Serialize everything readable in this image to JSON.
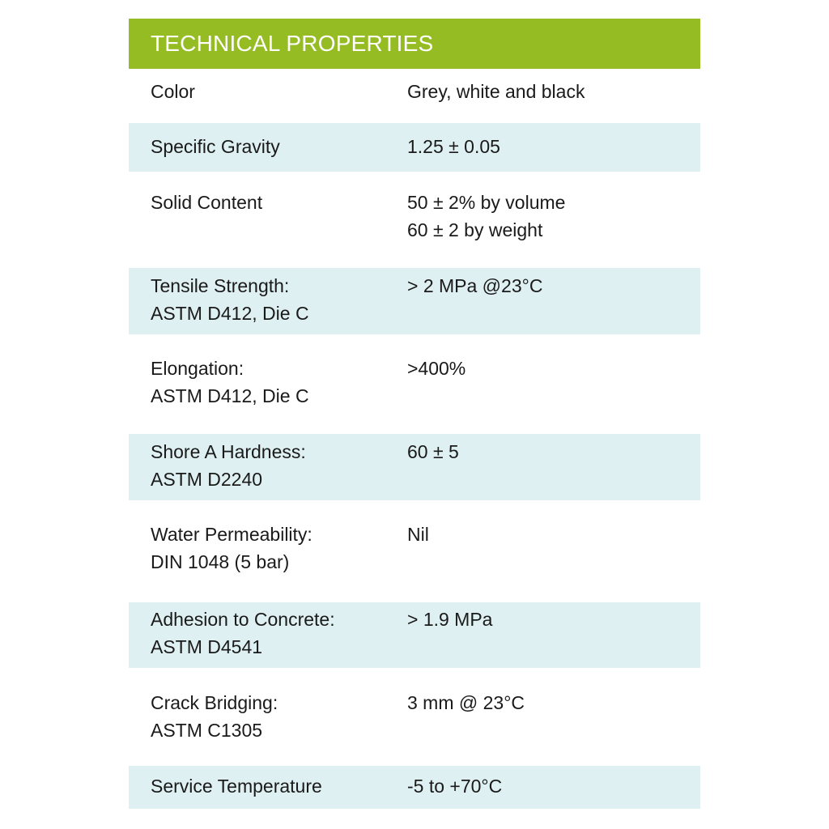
{
  "title": "TECHNICAL PROPERTIES",
  "colors": {
    "header_bg": "#95bd23",
    "header_text": "#ffffff",
    "shaded_row": "#dff0f2"
  },
  "rows": [
    {
      "property": "Color",
      "value": "Grey, white and black"
    },
    {
      "property": "Specific Gravity",
      "value": "1.25 ± 0.05"
    },
    {
      "property": "Solid Content",
      "value": "50 ± 2% by volume\n60 ± 2 by weight"
    },
    {
      "property": "Tensile Strength:\nASTM D412, Die C",
      "value": "> 2 MPa @23°C"
    },
    {
      "property": "Elongation:\nASTM D412, Die C",
      "value": ">400%"
    },
    {
      "property": "Shore A Hardness:\nASTM D2240",
      "value": "60 ± 5"
    },
    {
      "property": "Water Permeability:\nDIN 1048 (5 bar)",
      "value": "Nil"
    },
    {
      "property": "Adhesion to Concrete:\nASTM D4541",
      "value": "> 1.9 MPa"
    },
    {
      "property": "Crack Bridging:\nASTM C1305",
      "value": "3 mm @ 23°C"
    },
    {
      "property": "Service Temperature",
      "value": "-5 to +70°C"
    }
  ]
}
